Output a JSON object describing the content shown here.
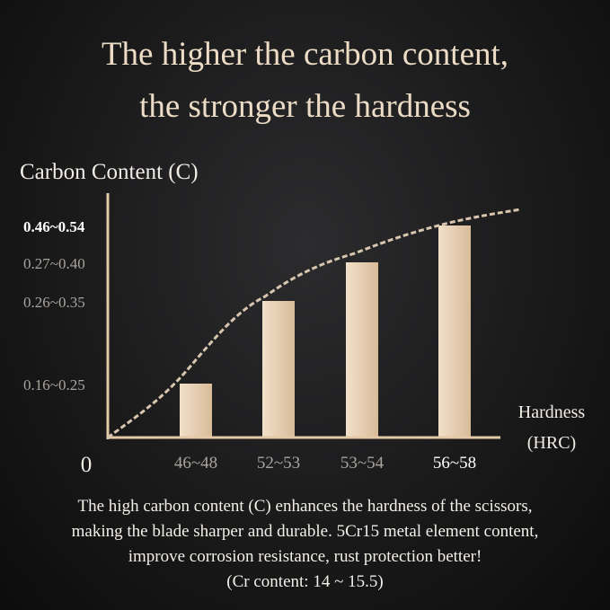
{
  "title_line1": "The higher the carbon content,",
  "title_line2": "the stronger the hardness",
  "chart_data": {
    "type": "bar",
    "ylabel": "Carbon Content (C)",
    "xlabel_line1": "Hardness",
    "xlabel_line2": "(HRC)",
    "origin_label": "0",
    "y_ticks": [
      "0.16~0.25",
      "0.26~0.35",
      "0.27~0.40",
      "0.46~0.54"
    ],
    "categories": [
      "46~48",
      "52~53",
      "53~54",
      "56~58"
    ],
    "values": [
      "0.16~0.25",
      "0.26~0.35",
      "0.27~0.40",
      "0.46~0.54"
    ],
    "trend_line": "dashed curve",
    "grid": false,
    "colors": {
      "bar": "#e6cfb2",
      "axis": "#e3c9a6",
      "trend": "#d8c6ae"
    }
  },
  "caption": [
    "The high carbon content (C) enhances the hardness of the scissors,",
    "making the blade sharper and durable. 5Cr15 metal element content,",
    "improve corrosion resistance, rust protection better!",
    "(Cr content: 14 ~ 15.5)"
  ]
}
